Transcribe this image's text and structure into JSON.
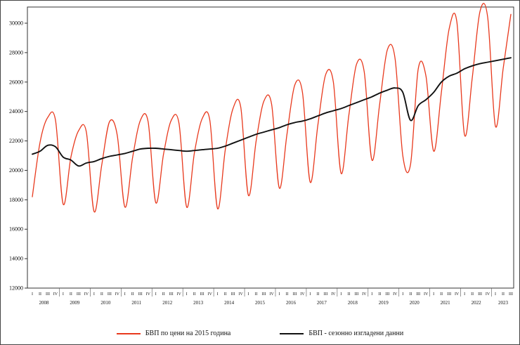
{
  "chart_data": {
    "type": "line",
    "title": "",
    "xlabel": "",
    "ylabel": "",
    "ylim": [
      12000,
      31000
    ],
    "yticks": [
      12000,
      14000,
      16000,
      18000,
      20000,
      22000,
      24000,
      26000,
      28000,
      30000
    ],
    "grid": false,
    "legend_position": "bottom",
    "years": [
      {
        "label": "2008",
        "quarters": [
          "I",
          "II",
          "III",
          "IV"
        ]
      },
      {
        "label": "2009",
        "quarters": [
          "I",
          "II",
          "III",
          "IV"
        ]
      },
      {
        "label": "2010",
        "quarters": [
          "I",
          "II",
          "III",
          "IV"
        ]
      },
      {
        "label": "2011",
        "quarters": [
          "I",
          "II",
          "III",
          "IV"
        ]
      },
      {
        "label": "2012",
        "quarters": [
          "I",
          "II",
          "III",
          "IV"
        ]
      },
      {
        "label": "2013",
        "quarters": [
          "I",
          "II",
          "III",
          "IV"
        ]
      },
      {
        "label": "2014",
        "quarters": [
          "I",
          "II",
          "III",
          "IV"
        ]
      },
      {
        "label": "2015",
        "quarters": [
          "I",
          "II",
          "III",
          "IV"
        ]
      },
      {
        "label": "2016",
        "quarters": [
          "I",
          "II",
          "III",
          "IV"
        ]
      },
      {
        "label": "2017",
        "quarters": [
          "I",
          "II",
          "III",
          "IV"
        ]
      },
      {
        "label": "2018",
        "quarters": [
          "I",
          "II",
          "III",
          "IV"
        ]
      },
      {
        "label": "2019",
        "quarters": [
          "I",
          "II",
          "III",
          "IV"
        ]
      },
      {
        "label": "2020",
        "quarters": [
          "I",
          "II",
          "III",
          "IV"
        ]
      },
      {
        "label": "2021",
        "quarters": [
          "I",
          "II",
          "III",
          "IV"
        ]
      },
      {
        "label": "2022",
        "quarters": [
          "I",
          "II",
          "III",
          "IV"
        ]
      },
      {
        "label": "2023",
        "quarters": [
          "I",
          "II",
          "III"
        ]
      }
    ],
    "series": [
      {
        "name": "БВП  по цени на 2015 година",
        "color": "#e8391d",
        "width": 1.3,
        "values": [
          18200,
          21900,
          23600,
          23400,
          17700,
          20900,
          22700,
          22600,
          17200,
          20400,
          23300,
          22400,
          17500,
          20900,
          23400,
          23300,
          17800,
          21100,
          23400,
          23200,
          17500,
          21200,
          23500,
          23400,
          17400,
          21400,
          24200,
          24300,
          18300,
          22000,
          24700,
          24500,
          18800,
          22500,
          25800,
          25300,
          19200,
          23100,
          26500,
          26000,
          19800,
          23700,
          27200,
          26700,
          20700,
          24500,
          28200,
          27600,
          21000,
          20400,
          26900,
          26400,
          21300,
          25300,
          29600,
          30100,
          22400,
          26300,
          30800,
          30400,
          23000,
          26900,
          30600
        ]
      },
      {
        "name": "БВП - сезонно изгладени данни",
        "color": "#111111",
        "width": 1.9,
        "values": [
          21100,
          21300,
          21700,
          21600,
          20900,
          20700,
          20300,
          20500,
          20600,
          20800,
          20950,
          21050,
          21150,
          21300,
          21450,
          21500,
          21500,
          21450,
          21400,
          21350,
          21300,
          21350,
          21400,
          21450,
          21500,
          21650,
          21850,
          22050,
          22250,
          22450,
          22600,
          22750,
          22900,
          23100,
          23250,
          23350,
          23500,
          23700,
          23900,
          24050,
          24200,
          24400,
          24600,
          24800,
          25000,
          25250,
          25450,
          25600,
          25300,
          23400,
          24400,
          24800,
          25300,
          26000,
          26400,
          26600,
          26900,
          27100,
          27250,
          27350,
          27450,
          27550,
          27650
        ]
      }
    ]
  }
}
